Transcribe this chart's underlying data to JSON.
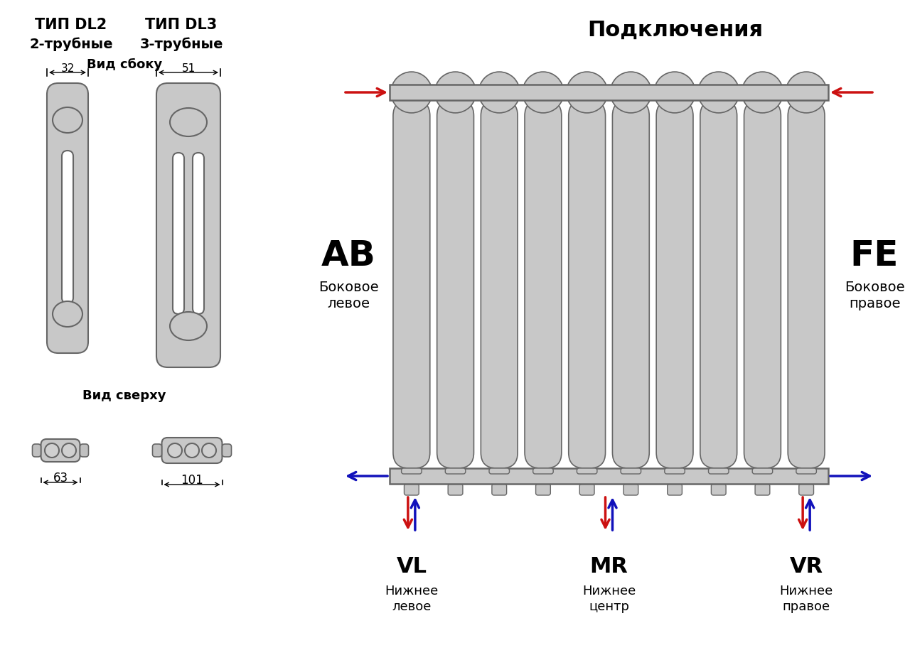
{
  "bg_color": "#ffffff",
  "radiator_color": "#c8c8c8",
  "radiator_outline": "#666666",
  "text_color": "#000000",
  "red_arrow": "#cc1111",
  "blue_arrow": "#1111bb",
  "title_right": "Подключения",
  "type_dl2": "ТИП DL2",
  "type_dl2_sub": "2-трубные",
  "type_dl3": "ТИП DL3",
  "type_dl3_sub": "3-трубные",
  "vid_sboku": "Вид сбоку",
  "vid_sverhu": "Вид сверху",
  "dim_dl2_w": "32",
  "dim_dl3_w": "51",
  "dim_dl2_bot": "63",
  "dim_dl3_bot": "101",
  "label_AB": "AB",
  "label_AB_sub1": "Боковое",
  "label_AB_sub2": "левое",
  "label_FE": "FE",
  "label_FE_sub1": "Боковое",
  "label_FE_sub2": "правое",
  "label_VL": "VL",
  "label_VL_sub1": "Нижнее",
  "label_VL_sub2": "левое",
  "label_MR": "MR",
  "label_MR_sub1": "Нижнее",
  "label_MR_sub2": "центр",
  "label_VR": "VR",
  "label_VR_sub1": "Нижнее",
  "label_VR_sub2": "правое"
}
